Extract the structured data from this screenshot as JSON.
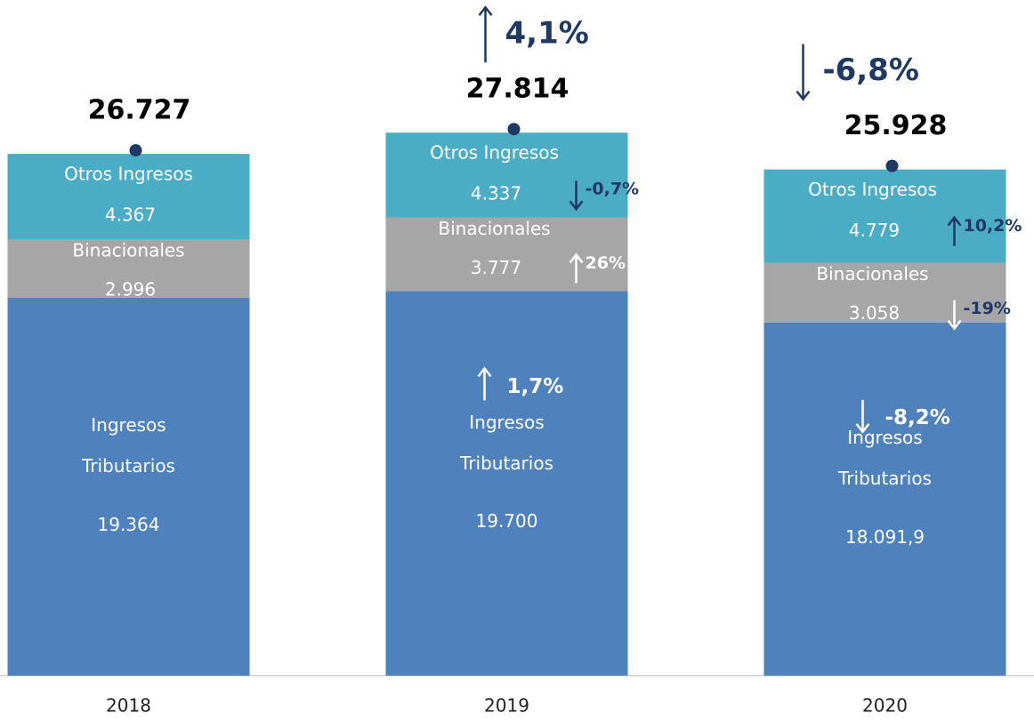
{
  "chart_data": {
    "type": "stacked_bar",
    "categories": [
      "2018",
      "2019",
      "2020"
    ],
    "ylim": [
      0,
      34610
    ],
    "series": [
      {
        "name": "Ingresos Tributarios",
        "color": "#4f81bd",
        "values": [
          19364,
          19700,
          18091.9
        ],
        "value_labels": [
          "19.364",
          "19.700",
          "18.091,9"
        ],
        "changes": [
          null,
          {
            "value": 1.7,
            "label": "1,7%"
          },
          {
            "value": -8.2,
            "label": "-8,2%"
          }
        ]
      },
      {
        "name": "Binacionales",
        "color": "#a6a6a6",
        "values": [
          2996,
          3777,
          3058
        ],
        "value_labels": [
          "2.996",
          "3.777",
          "3.058"
        ],
        "changes": [
          null,
          {
            "value": 26,
            "label": "26%"
          },
          {
            "value": -19,
            "label": "-19%"
          }
        ]
      },
      {
        "name": "Otros Ingresos",
        "color": "#4bacc6",
        "values": [
          4367,
          4337,
          4779
        ],
        "value_labels": [
          "4.367",
          "4.337",
          "4.779"
        ],
        "changes": [
          null,
          {
            "value": -0.7,
            "label": "-0,7%"
          },
          {
            "value": 10.2,
            "label": "10,2%"
          }
        ]
      }
    ],
    "totals": {
      "values": [
        26727,
        27814,
        25928
      ],
      "value_labels": [
        "26.727",
        "27.814",
        "25.928"
      ],
      "changes": [
        null,
        {
          "value": 4.1,
          "label": "4,1%"
        },
        {
          "value": -6.8,
          "label": "-6,8%"
        }
      ]
    }
  }
}
